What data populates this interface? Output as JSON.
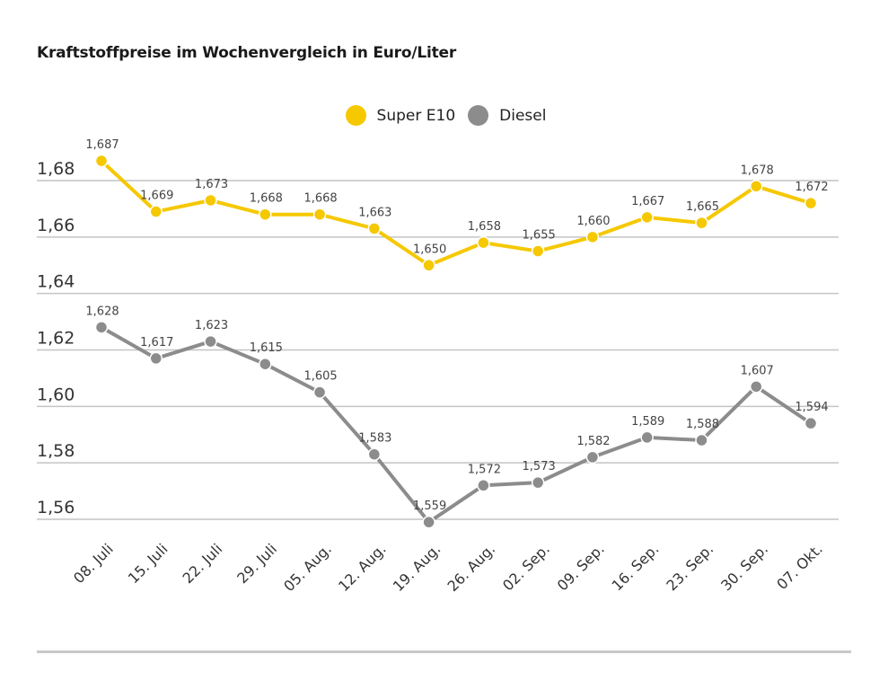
{
  "title": "Kraftstoffpreise im Wochenvergleich in Euro/Liter",
  "legend": [
    {
      "label": "Super E10",
      "color": "#f5c800"
    },
    {
      "label": "Diesel",
      "color": "#8c8c8c"
    }
  ],
  "chart_data": {
    "type": "line",
    "title": "Kraftstoffpreise im Wochenvergleich in Euro/Liter",
    "xlabel": "",
    "ylabel": "",
    "categories": [
      "08. Juli",
      "15. Juli",
      "22. Juli",
      "29. Juli",
      "05. Aug.",
      "12. Aug.",
      "19. Aug.",
      "26. Aug.",
      "02. Sep.",
      "09. Sep.",
      "16. Sep.",
      "23. Sep.",
      "30. Sep.",
      "07. Okt."
    ],
    "series": [
      {
        "name": "Super E10",
        "color": "#f5c800",
        "values": [
          1.687,
          1.669,
          1.673,
          1.668,
          1.668,
          1.663,
          1.65,
          1.658,
          1.655,
          1.66,
          1.667,
          1.665,
          1.678,
          1.672
        ],
        "labels": [
          "1,687",
          "1,669",
          "1,673",
          "1,668",
          "1,668",
          "1,663",
          "1,650",
          "1,658",
          "1,655",
          "1,660",
          "1,667",
          "1,665",
          "1,678",
          "1,672"
        ]
      },
      {
        "name": "Diesel",
        "color": "#8c8c8c",
        "values": [
          1.628,
          1.617,
          1.623,
          1.615,
          1.605,
          1.583,
          1.559,
          1.572,
          1.573,
          1.582,
          1.589,
          1.588,
          1.607,
          1.594
        ],
        "labels": [
          "1,628",
          "1,617",
          "1,623",
          "1,615",
          "1,605",
          "1,583",
          "1,559",
          "1,572",
          "1,573",
          "1,582",
          "1,589",
          "1,588",
          "1,607",
          "1,594"
        ]
      }
    ],
    "yticks": [
      1.68,
      1.66,
      1.64,
      1.62,
      1.6,
      1.58,
      1.56
    ],
    "ytick_labels": [
      "1,68",
      "1,66",
      "1,64",
      "1,62",
      "1,60",
      "1,58",
      "1,56"
    ],
    "ylim": [
      1.56,
      1.68
    ],
    "grid": true,
    "legend_position": "top-center"
  }
}
